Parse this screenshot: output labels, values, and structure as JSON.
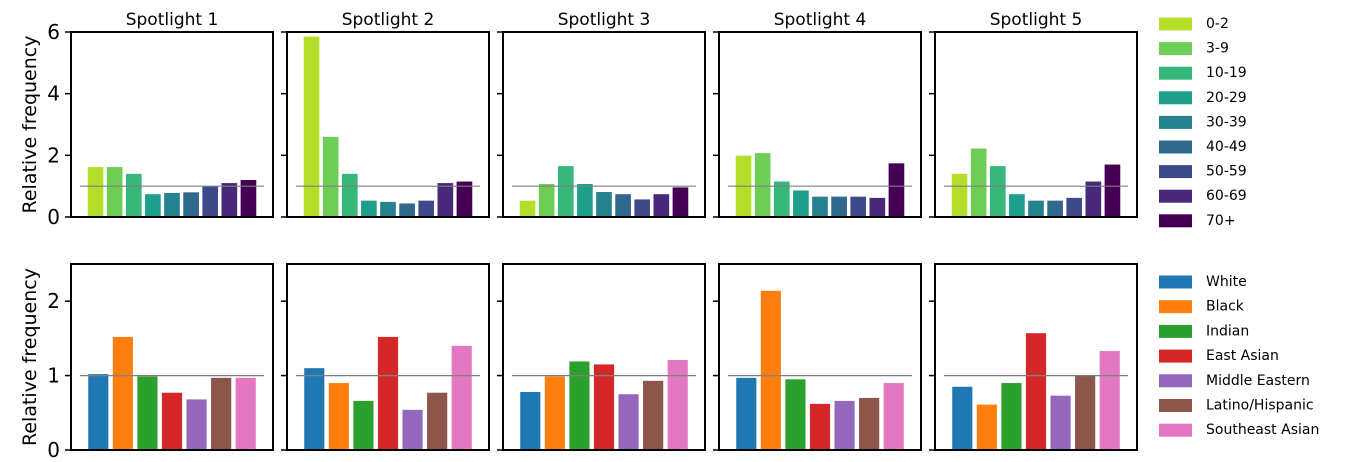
{
  "chart_data": [
    {
      "type": "bar",
      "panel_row": "age",
      "ylabel": "Relative frequency",
      "ylim": [
        0,
        6
      ],
      "yticks": [
        "0",
        "2",
        "4",
        "6"
      ],
      "reference_value": 1,
      "categories": [
        "0-2",
        "3-9",
        "10-19",
        "20-29",
        "30-39",
        "40-49",
        "50-59",
        "60-69",
        "70+"
      ],
      "colors": [
        "#b5de2b",
        "#6ece58",
        "#35b779",
        "#1f9e89",
        "#26828e",
        "#31688e",
        "#3e4989",
        "#482878",
        "#440154"
      ],
      "series": [
        {
          "name": "Spotlight 1",
          "values": [
            1.62,
            1.62,
            1.4,
            0.74,
            0.78,
            0.8,
            0.99,
            1.1,
            1.2
          ]
        },
        {
          "name": "Spotlight 2",
          "values": [
            5.85,
            2.6,
            1.4,
            0.53,
            0.49,
            0.44,
            0.53,
            1.1,
            1.15
          ]
        },
        {
          "name": "Spotlight 3",
          "values": [
            0.53,
            1.07,
            1.65,
            1.07,
            0.81,
            0.74,
            0.57,
            0.74,
            0.96
          ]
        },
        {
          "name": "Spotlight 4",
          "values": [
            1.99,
            2.07,
            1.15,
            0.86,
            0.66,
            0.66,
            0.66,
            0.62,
            1.74
          ]
        },
        {
          "name": "Spotlight 5",
          "values": [
            1.4,
            2.22,
            1.65,
            0.74,
            0.53,
            0.53,
            0.62,
            1.15,
            1.7
          ]
        }
      ],
      "legend": "right"
    },
    {
      "type": "bar",
      "panel_row": "ethnicity",
      "ylabel": "Relative frequency",
      "ylim": [
        0,
        2.5
      ],
      "yticks": [
        "0",
        "1",
        "2"
      ],
      "reference_value": 1,
      "categories": [
        "White",
        "Black",
        "Indian",
        "East Asian",
        "Middle Eastern",
        "Latino/Hispanic",
        "Southeast Asian"
      ],
      "colors": [
        "#1f77b4",
        "#ff7f0e",
        "#2ca02c",
        "#d62728",
        "#9467bd",
        "#8c564b",
        "#e377c2"
      ],
      "series": [
        {
          "name": "Spotlight 1",
          "values": [
            1.02,
            1.52,
            0.99,
            0.77,
            0.68,
            0.97,
            0.97
          ]
        },
        {
          "name": "Spotlight 2",
          "values": [
            1.1,
            0.9,
            0.66,
            1.52,
            0.54,
            0.77,
            1.4
          ]
        },
        {
          "name": "Spotlight 3",
          "values": [
            0.78,
            0.99,
            1.19,
            1.15,
            0.75,
            0.93,
            1.21
          ]
        },
        {
          "name": "Spotlight 4",
          "values": [
            0.97,
            2.14,
            0.95,
            0.62,
            0.66,
            0.7,
            0.9
          ]
        },
        {
          "name": "Spotlight 5",
          "values": [
            0.85,
            0.61,
            0.9,
            1.57,
            0.73,
            1.0,
            1.33
          ]
        }
      ],
      "legend": "right"
    }
  ]
}
